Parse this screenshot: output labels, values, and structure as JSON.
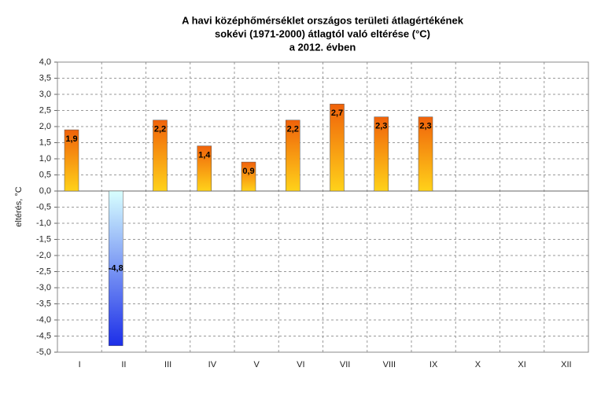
{
  "chart_data": {
    "type": "bar",
    "title": [
      "A havi középhőmérséklet országos területi átlagértékének",
      "sokévi (1971-2000) átlagtól való eltérése (°C)",
      "a 2012. évben"
    ],
    "y_label": "eltérés, °C",
    "categories": [
      "I",
      "II",
      "III",
      "IV",
      "V",
      "VI",
      "VII",
      "VIII",
      "IX",
      "X",
      "XI",
      "XII"
    ],
    "values": [
      1.9,
      -4.8,
      2.2,
      1.4,
      0.9,
      2.2,
      2.7,
      2.3,
      2.3,
      null,
      null,
      null
    ],
    "value_labels": [
      "1,9",
      "-4,8",
      "2,2",
      "1,4",
      "0,9",
      "2,2",
      "2,7",
      "2,3",
      "2,3",
      null,
      null,
      null
    ],
    "positive_colors": [
      "#f0620a",
      "#ffd21a"
    ],
    "negative_colors": [
      "#d8ffff",
      "#1c2ee8"
    ],
    "ylim": [
      -5,
      4
    ],
    "yticks": [
      {
        "value": 4,
        "label": "4,0"
      },
      {
        "value": 3.5,
        "label": "3,5"
      },
      {
        "value": 3,
        "label": "3,0"
      },
      {
        "value": 2.5,
        "label": "2,5"
      },
      {
        "value": 2,
        "label": "2,0"
      },
      {
        "value": 1.5,
        "label": "1,5"
      },
      {
        "value": 1,
        "label": "1,0"
      },
      {
        "value": 0.5,
        "label": "0,5"
      },
      {
        "value": 0,
        "label": "0,0"
      },
      {
        "value": -0.5,
        "label": "-0,5"
      },
      {
        "value": -1,
        "label": "-1,0"
      },
      {
        "value": -1.5,
        "label": "-1,5"
      },
      {
        "value": -2,
        "label": "-2,0"
      },
      {
        "value": -2.5,
        "label": "-2,5"
      },
      {
        "value": -3,
        "label": "-3,0"
      },
      {
        "value": -3.5,
        "label": "-3,5"
      },
      {
        "value": -4,
        "label": "-4,0"
      },
      {
        "value": -4.5,
        "label": "-4,5"
      },
      {
        "value": -5,
        "label": "-5,0"
      }
    ],
    "grid": true
  }
}
